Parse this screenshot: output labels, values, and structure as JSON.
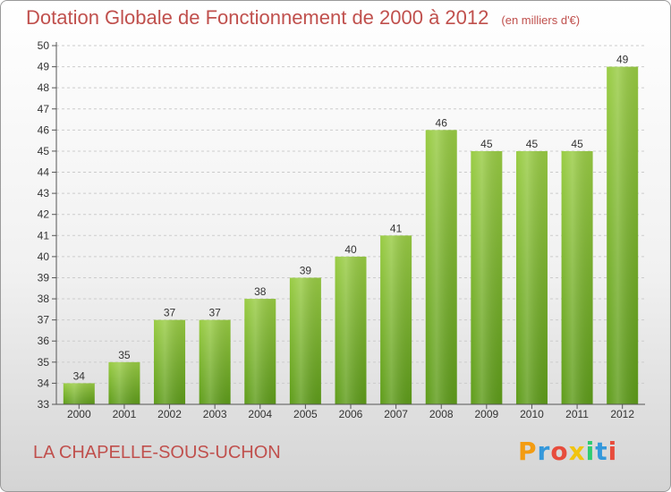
{
  "title": "Dotation Globale de Fonctionnement de 2000 à 2012",
  "unit": "(en milliers d'€)",
  "commune": "LA CHAPELLE-SOUS-UCHON",
  "logo": {
    "letters": [
      "P",
      "r",
      "o",
      "x",
      "i",
      "t",
      "i"
    ],
    "colors": [
      "#f39c12",
      "#3498db",
      "#e74c3c",
      "#f1c40f",
      "#2ecc71",
      "#3498db",
      "#e74c3c"
    ]
  },
  "colors": {
    "title": "#c0504d",
    "bar_top": "#99cc44",
    "bar_bottom": "#5e9c1a",
    "grid": "#cccccc"
  },
  "chart_data": {
    "type": "bar",
    "categories": [
      "2000",
      "2001",
      "2002",
      "2003",
      "2004",
      "2005",
      "2006",
      "2007",
      "2008",
      "2009",
      "2010",
      "2011",
      "2012"
    ],
    "values": [
      34,
      35,
      37,
      37,
      38,
      39,
      40,
      41,
      46,
      45,
      45,
      45,
      49
    ],
    "ylim": [
      33,
      50
    ],
    "yticks": [
      33,
      34,
      35,
      36,
      37,
      38,
      39,
      40,
      41,
      42,
      43,
      44,
      45,
      46,
      47,
      48,
      49,
      50
    ],
    "grid": true,
    "xlabel": "",
    "ylabel": ""
  }
}
